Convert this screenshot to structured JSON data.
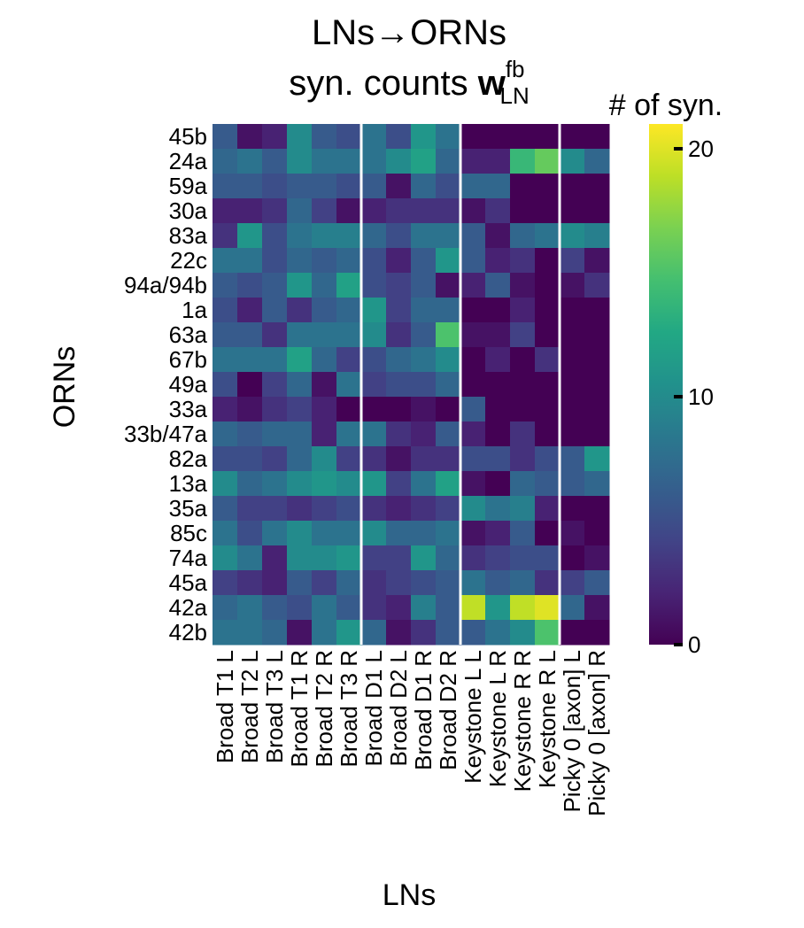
{
  "chart_data": {
    "type": "heatmap",
    "title_line1": "LNs→ORNs",
    "title_line2_prefix": "syn. counts ",
    "title_symbol": "w",
    "title_sup": "fb",
    "title_sub": "LN",
    "xlabel": "LNs",
    "ylabel": "ORNs",
    "colorbar_title": "# of syn.",
    "colorbar_ticks": [
      0,
      10,
      20
    ],
    "vmin": 0,
    "vmax": 21,
    "colormap": "viridis",
    "separator_color": "#ffffff",
    "group_separators_after_col": [
      6,
      10,
      14
    ],
    "columns": [
      "Broad T1 L",
      "Broad T2 L",
      "Broad T3 L",
      "Broad T1 R",
      "Broad T2 R",
      "Broad T3 R",
      "Broad D1 L",
      "Broad D2 L",
      "Broad D1 R",
      "Broad D2 R",
      "Keystone L L",
      "Keystone L R",
      "Keystone R R",
      "Keystone R L",
      "Picky 0 [axon] L",
      "Picky 0 [axon] R"
    ],
    "rows": [
      "45b",
      "24a",
      "59a",
      "30a",
      "83a",
      "22c",
      "94a/94b",
      "1a",
      "63a",
      "67b",
      "49a",
      "33a",
      "33b/47a",
      "82a",
      "13a",
      "35a",
      "85c",
      "74a",
      "45a",
      "42a",
      "42b"
    ],
    "values": [
      [
        6,
        1,
        2,
        10,
        6,
        5,
        8,
        5,
        11,
        8,
        0,
        0,
        0,
        0,
        0,
        0
      ],
      [
        7,
        8,
        6,
        10,
        8,
        8,
        8,
        10,
        12,
        7,
        2,
        2,
        14,
        16,
        10,
        7
      ],
      [
        6,
        6,
        5,
        6,
        6,
        5,
        6,
        1,
        7,
        5,
        7,
        7,
        0,
        0,
        0,
        0
      ],
      [
        2,
        2,
        3,
        7,
        4,
        1,
        2,
        3,
        3,
        3,
        1,
        3,
        0,
        0,
        0,
        0
      ],
      [
        3,
        11,
        5,
        8,
        9,
        9,
        7,
        5,
        8,
        8,
        6,
        1,
        7,
        8,
        10,
        9
      ],
      [
        8,
        8,
        5,
        7,
        6,
        7,
        5,
        2,
        6,
        11,
        6,
        2,
        3,
        0,
        4,
        1
      ],
      [
        6,
        5,
        6,
        11,
        7,
        12,
        5,
        4,
        6,
        1,
        2,
        6,
        1,
        0,
        1,
        3
      ],
      [
        5,
        2,
        6,
        3,
        6,
        7,
        11,
        4,
        7,
        7,
        0,
        0,
        2,
        0,
        0,
        0
      ],
      [
        6,
        6,
        3,
        8,
        8,
        8,
        10,
        3,
        6,
        15,
        1,
        1,
        4,
        0,
        0,
        0
      ],
      [
        8,
        8,
        8,
        12,
        7,
        4,
        5,
        7,
        8,
        10,
        0,
        2,
        0,
        3,
        0,
        0
      ],
      [
        5,
        0,
        4,
        7,
        1,
        8,
        4,
        5,
        5,
        7,
        0,
        0,
        0,
        0,
        0,
        0
      ],
      [
        2,
        1,
        3,
        4,
        2,
        0,
        0,
        0,
        1,
        0,
        6,
        0,
        0,
        0,
        0,
        0
      ],
      [
        7,
        6,
        7,
        7,
        2,
        8,
        8,
        3,
        2,
        6,
        2,
        0,
        3,
        0,
        0,
        0
      ],
      [
        5,
        5,
        4,
        7,
        10,
        4,
        3,
        1,
        3,
        3,
        5,
        5,
        3,
        5,
        6,
        11
      ],
      [
        10,
        7,
        8,
        10,
        11,
        10,
        11,
        4,
        8,
        12,
        1,
        0,
        7,
        6,
        6,
        7
      ],
      [
        6,
        4,
        4,
        3,
        4,
        5,
        3,
        2,
        3,
        4,
        10,
        8,
        9,
        2,
        0,
        0
      ],
      [
        8,
        5,
        8,
        10,
        8,
        8,
        10,
        7,
        7,
        8,
        1,
        2,
        6,
        0,
        1,
        0
      ],
      [
        10,
        8,
        2,
        10,
        10,
        11,
        4,
        4,
        11,
        7,
        3,
        4,
        5,
        5,
        0,
        1
      ],
      [
        4,
        3,
        2,
        6,
        4,
        7,
        3,
        4,
        5,
        6,
        8,
        6,
        7,
        3,
        4,
        6
      ],
      [
        7,
        8,
        6,
        5,
        8,
        6,
        3,
        2,
        9,
        6,
        19,
        11,
        19,
        20,
        7,
        1
      ],
      [
        8,
        8,
        7,
        1,
        8,
        11,
        7,
        1,
        3,
        6,
        6,
        8,
        10,
        15,
        0,
        0
      ]
    ]
  }
}
